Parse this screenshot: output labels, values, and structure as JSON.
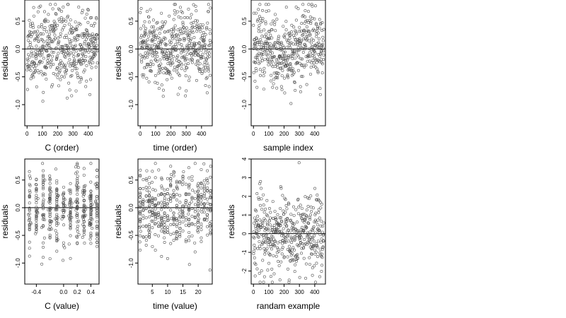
{
  "chart_data": [
    {
      "type": "scatter",
      "xlabel": "C (order)",
      "ylabel": "residuals",
      "xticks": [
        0,
        100,
        200,
        300,
        400
      ],
      "xtick_labels": [
        "0",
        "100",
        "200",
        "300",
        "400"
      ],
      "yticks": [
        -1.0,
        -0.5,
        0.0,
        0.5
      ],
      "ytick_labels": [
        "-1.0",
        "-0.5",
        "0.0",
        "0.5"
      ],
      "xlim": [
        -15,
        470
      ],
      "ylim": [
        -1.38,
        0.88
      ],
      "reference_line_y": 0,
      "n_points": 460,
      "x_range": [
        0,
        459
      ],
      "y_range": [
        -1.32,
        0.8
      ],
      "pattern": "order",
      "color": "#555555",
      "seed": 11
    },
    {
      "type": "scatter",
      "xlabel": "time (order)",
      "ylabel": "residuals",
      "xticks": [
        0,
        100,
        200,
        300,
        400
      ],
      "xtick_labels": [
        "0",
        "100",
        "200",
        "300",
        "400"
      ],
      "yticks": [
        -1.0,
        -0.5,
        0.0,
        0.5
      ],
      "ytick_labels": [
        "-1.0",
        "-0.5",
        "0.0",
        "0.5"
      ],
      "xlim": [
        -15,
        470
      ],
      "ylim": [
        -1.38,
        0.88
      ],
      "reference_line_y": 0,
      "n_points": 460,
      "x_range": [
        0,
        459
      ],
      "y_range": [
        -1.32,
        0.8
      ],
      "pattern": "order",
      "color": "#555555",
      "seed": 23
    },
    {
      "type": "scatter",
      "xlabel": "sample index",
      "ylabel": "residuals",
      "xticks": [
        0,
        100,
        200,
        300,
        400
      ],
      "xtick_labels": [
        "0",
        "100",
        "200",
        "300",
        "400"
      ],
      "yticks": [
        -1.0,
        -0.5,
        0.0,
        0.5
      ],
      "ytick_labels": [
        "-1.0",
        "-0.5",
        "0.0",
        "0.5"
      ],
      "xlim": [
        -15,
        470
      ],
      "ylim": [
        -1.38,
        0.88
      ],
      "reference_line_y": 0,
      "n_points": 460,
      "x_range": [
        0,
        459
      ],
      "y_range": [
        -1.32,
        0.8
      ],
      "pattern": "trend",
      "color": "#555555",
      "seed": 37
    },
    {
      "type": "scatter",
      "xlabel": "C (value)",
      "ylabel": "residuals",
      "xticks": [
        -0.4,
        0.0,
        0.2,
        0.4
      ],
      "xtick_labels": [
        "-0.4",
        "0.0",
        "0.2",
        "0.4"
      ],
      "yticks": [
        -1.0,
        -0.5,
        0.0,
        0.5
      ],
      "ytick_labels": [
        "-1.0",
        "-0.5",
        "0.0",
        "0.5"
      ],
      "xlim": [
        -0.57,
        0.52
      ],
      "ylim": [
        -1.38,
        0.88
      ],
      "reference_line_y": 0,
      "n_points": 460,
      "x_range": [
        -0.5,
        0.49
      ],
      "y_range": [
        -1.32,
        0.8
      ],
      "pattern": "columns",
      "column_positions": [
        -0.5,
        -0.4,
        -0.3,
        -0.2,
        -0.1,
        0.0,
        0.1,
        0.2,
        0.3,
        0.4,
        0.49
      ],
      "color": "#555555",
      "seed": 41
    },
    {
      "type": "scatter",
      "xlabel": "time (value)",
      "ylabel": "residuals",
      "xticks": [
        5,
        10,
        15,
        20
      ],
      "xtick_labels": [
        "5",
        "10",
        "15",
        "20"
      ],
      "yticks": [
        -1.0,
        -0.5,
        0.0,
        0.5
      ],
      "ytick_labels": [
        "-1.0",
        "-0.5",
        "0.0",
        "0.5"
      ],
      "xlim": [
        0.3,
        24.6
      ],
      "ylim": [
        -1.38,
        0.88
      ],
      "reference_line_y": 0,
      "n_points": 460,
      "x_range": [
        1,
        24
      ],
      "y_range": [
        -1.32,
        0.8
      ],
      "pattern": "columns",
      "column_positions": [
        1,
        2,
        3,
        4,
        5,
        6,
        7,
        8,
        9,
        10,
        11,
        12,
        13,
        14,
        15,
        16,
        17,
        18,
        19,
        20,
        21,
        22,
        23,
        24
      ],
      "color": "#555555",
      "seed": 53
    },
    {
      "type": "scatter",
      "xlabel": "randam example",
      "ylabel": "residuals",
      "xticks": [
        0,
        100,
        200,
        300,
        400
      ],
      "xtick_labels": [
        "0",
        "100",
        "200",
        "300",
        "400"
      ],
      "yticks": [
        -2,
        -1,
        0,
        1,
        2,
        3,
        4
      ],
      "ytick_labels": [
        "-2",
        "-1",
        "0",
        "1",
        "2",
        "3",
        "4"
      ],
      "xlim": [
        -15,
        470
      ],
      "ylim": [
        -2.7,
        4.0
      ],
      "reference_line_y": 0,
      "n_points": 460,
      "x_range": [
        0,
        459
      ],
      "y_range": [
        -2.6,
        3.8
      ],
      "pattern": "random",
      "color": "#555555",
      "seed": 67
    }
  ]
}
